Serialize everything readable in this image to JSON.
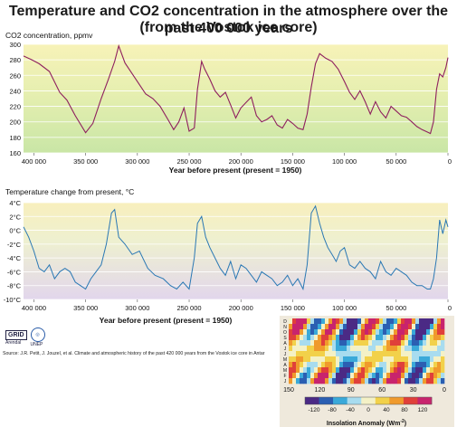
{
  "title_line1": "Temperature and CO2 concentration in the atmosphere over the past 400 000 years",
  "title_line2": "(from the Vostok ice core)",
  "chart_data": [
    {
      "type": "line",
      "title": "CO2 concentration, ppmv",
      "xlabel": "Year before present (present = 1950)",
      "xlim": [
        410000,
        0
      ],
      "ylim": [
        160,
        300
      ],
      "y_ticks": [
        "160",
        "180",
        "200",
        "220",
        "240",
        "260",
        "280",
        "300"
      ],
      "x_ticks": [
        "400 000",
        "350 000",
        "300 000",
        "250 000",
        "200 000",
        "150 000",
        "100 000",
        "50 000",
        "0"
      ],
      "line_color": "#8e1f5e",
      "background": "yellow-to-green gradient",
      "series": [
        {
          "x": [
            410000,
            402000,
            395000,
            385000,
            375000,
            368000,
            360000,
            350000,
            343000,
            335000,
            328000,
            322000,
            318000,
            312000,
            305000,
            298000,
            292000,
            285000,
            278000,
            270000,
            265000,
            260000,
            255000,
            250000,
            245000,
            242000,
            238000,
            235000,
            230000,
            225000,
            220000,
            215000,
            210000,
            205000,
            200000,
            195000,
            190000,
            185000,
            180000,
            175000,
            170000,
            165000,
            160000,
            155000,
            150000,
            145000,
            140000,
            136000,
            132000,
            128000,
            124000,
            118000,
            112000,
            106000,
            100000,
            95000,
            90000,
            85000,
            80000,
            75000,
            70000,
            65000,
            60000,
            55000,
            50000,
            45000,
            40000,
            35000,
            30000,
            25000,
            20000,
            17000,
            14000,
            11000,
            8000,
            5000,
            2000,
            0
          ],
          "y": [
            285,
            280,
            275,
            265,
            238,
            228,
            208,
            186,
            198,
            230,
            255,
            278,
            298,
            276,
            262,
            248,
            236,
            230,
            220,
            202,
            190,
            200,
            218,
            188,
            192,
            242,
            278,
            268,
            255,
            240,
            232,
            238,
            222,
            205,
            218,
            225,
            232,
            208,
            200,
            203,
            208,
            196,
            192,
            203,
            198,
            192,
            190,
            210,
            245,
            275,
            288,
            282,
            278,
            268,
            252,
            238,
            229,
            240,
            226,
            210,
            226,
            213,
            205,
            220,
            214,
            208,
            206,
            200,
            194,
            190,
            187,
            185,
            200,
            242,
            262,
            258,
            270,
            283
          ]
        }
      ]
    },
    {
      "type": "line",
      "title": "Temperature change from present, °C",
      "xlabel": "Year before present (present = 1950)",
      "xlim": [
        410000,
        0
      ],
      "ylim": [
        -10,
        4
      ],
      "y_ticks": [
        "-10°C",
        "-8°C",
        "-6°C",
        "-4°C",
        "-2°C",
        "0°C",
        "2°C",
        "4°C"
      ],
      "x_ticks": [
        "400 000",
        "350 000",
        "300 000",
        "250 000",
        "200 000",
        "150 000",
        "100 000",
        "50 000",
        "0"
      ],
      "line_color": "#2a78b4",
      "background": "yellow-to-lavender gradient",
      "series": [
        {
          "x": [
            410000,
            405000,
            400000,
            395000,
            390000,
            385000,
            380000,
            375000,
            370000,
            365000,
            360000,
            355000,
            350000,
            345000,
            340000,
            335000,
            330000,
            325000,
            322000,
            318000,
            312000,
            305000,
            298000,
            290000,
            283000,
            275000,
            268000,
            262000,
            256000,
            250000,
            245000,
            242000,
            238000,
            234000,
            230000,
            225000,
            220000,
            215000,
            210000,
            205000,
            200000,
            195000,
            190000,
            185000,
            180000,
            175000,
            170000,
            165000,
            160000,
            155000,
            150000,
            145000,
            140000,
            136000,
            132000,
            128000,
            124000,
            120000,
            116000,
            112000,
            108000,
            104000,
            100000,
            95000,
            90000,
            85000,
            80000,
            75000,
            70000,
            65000,
            60000,
            55000,
            50000,
            45000,
            40000,
            35000,
            30000,
            25000,
            20000,
            17000,
            14000,
            11000,
            8000,
            5000,
            2000,
            0
          ],
          "y": [
            0.5,
            -1,
            -3,
            -5.5,
            -6,
            -5,
            -7,
            -6,
            -5.5,
            -6,
            -7.5,
            -8,
            -8.5,
            -7,
            -6,
            -5,
            -2,
            2.5,
            3,
            -1,
            -2,
            -3.5,
            -3,
            -5.5,
            -6.5,
            -7,
            -8,
            -8.5,
            -7.5,
            -8.5,
            -4,
            1,
            2,
            -1,
            -2.5,
            -4,
            -5.5,
            -6.5,
            -4.5,
            -7,
            -5,
            -5.5,
            -6.5,
            -7.5,
            -6,
            -6.5,
            -7,
            -8,
            -7.5,
            -6.5,
            -8,
            -7,
            -8.5,
            -5,
            2.5,
            3.5,
            1,
            -1,
            -2.5,
            -3.5,
            -4.5,
            -3,
            -2.5,
            -5,
            -5.5,
            -4.5,
            -5.5,
            -6,
            -7,
            -4.5,
            -6,
            -6.5,
            -5.5,
            -6,
            -6.5,
            -7.5,
            -8,
            -8,
            -8.5,
            -8.5,
            -7,
            -4,
            1.5,
            -0.5,
            1.5,
            0.5
          ]
        }
      ]
    },
    {
      "type": "heatmap",
      "xlabel": "Insolation Anomaly (Wm",
      "xlabel_suffix": "-2",
      "xlabel_close": ")",
      "x_ticks": [
        "150",
        "120",
        "90",
        "60",
        "30",
        "0"
      ],
      "y_ticks": [
        "D",
        "N",
        "O",
        "S",
        "A",
        "J",
        "J",
        "M",
        "A",
        "M",
        "F",
        "J"
      ],
      "colorbar_ticks": [
        "-120",
        "-80",
        "-40",
        "0",
        "40",
        "80",
        "120"
      ],
      "colorbar_colors": [
        "#4b2a85",
        "#2b5fb2",
        "#3aa9d9",
        "#a8dcef",
        "#f4f1c6",
        "#f2d14a",
        "#f09a2c",
        "#e0403a",
        "#c8246d"
      ]
    }
  ],
  "source": "Source: J.R. Petit, J. Jouzel, et al. Climate and atmospheric history of the past 420 000 years from the Vostok ice core in Antar",
  "logo": {
    "name": "GRID",
    "sub": "Arendal",
    "unep": "UNEP"
  }
}
